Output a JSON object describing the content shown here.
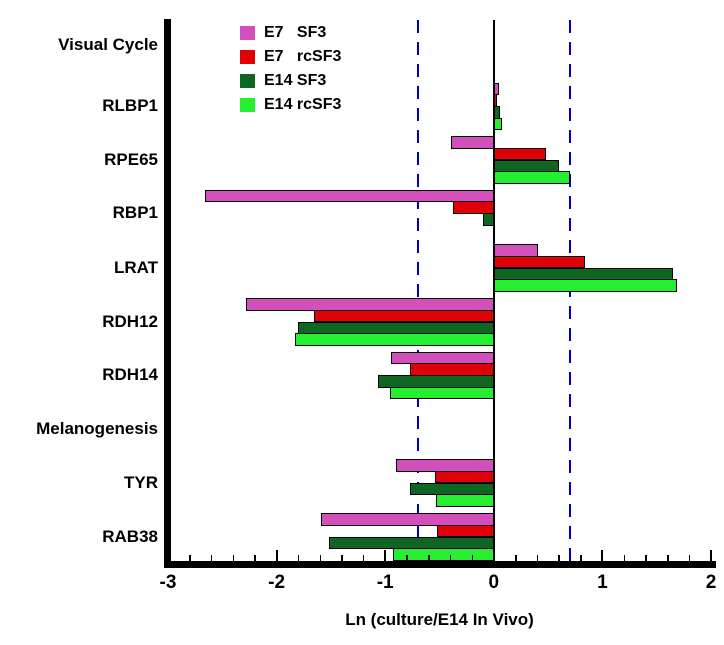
{
  "chart_data": {
    "type": "bar",
    "orientation": "horizontal",
    "xlabel": "Ln (culture/E14 In Vivo)",
    "xlim": [
      -3,
      2
    ],
    "x_tick_values": [
      -3,
      -2,
      -1,
      0,
      1,
      2
    ],
    "x_tick_labels": [
      "-3",
      "-2",
      "-1",
      "0",
      "1",
      "2"
    ],
    "minor_tick_step": 0.2,
    "grid": false,
    "zero_line_value": 0,
    "reference_lines": {
      "values": [
        -0.7,
        0.7
      ],
      "color": "#0000CC",
      "style": "dashed"
    },
    "legend_position": "top-inside",
    "series_names": [
      "E7 SF3",
      "E7 rcSF3",
      "E14 SF3",
      "E14 rcSF3"
    ],
    "legend": [
      {
        "label": "E7   SF3",
        "color": "#D34FBC"
      },
      {
        "label": "E7   rcSF3",
        "color": "#E00008"
      },
      {
        "label": "E14 SF3",
        "color": "#0F6622"
      },
      {
        "label": "E14 rcSF3",
        "color": "#26EF32"
      }
    ],
    "categories": [
      "Visual Cycle",
      "RLBP1",
      "RPE65",
      "RBP1",
      "LRAT",
      "RDH12",
      "RDH14",
      "Melanogenesis",
      "TYR",
      "RAB38"
    ],
    "groups": [
      {
        "label": "Visual Cycle",
        "is_section_header": true,
        "values": null
      },
      {
        "label": "RLBP1",
        "is_section_header": false,
        "values": [
          0.05,
          0.03,
          0.06,
          0.08
        ]
      },
      {
        "label": "RPE65",
        "is_section_header": false,
        "values": [
          -0.39,
          0.48,
          0.6,
          0.7
        ]
      },
      {
        "label": "RBP1",
        "is_section_header": false,
        "values": [
          -2.66,
          -0.38,
          -0.1,
          0
        ]
      },
      {
        "label": "LRAT",
        "is_section_header": false,
        "values": [
          0.41,
          0.84,
          1.65,
          1.69
        ]
      },
      {
        "label": "RDH12",
        "is_section_header": false,
        "values": [
          -2.28,
          -1.66,
          -1.8,
          -1.83
        ]
      },
      {
        "label": "RDH14",
        "is_section_header": false,
        "values": [
          -0.95,
          -0.77,
          -1.07,
          -0.96
        ]
      },
      {
        "label": "Melanogenesis",
        "is_section_header": true,
        "values": null
      },
      {
        "label": "TYR",
        "is_section_header": false,
        "values": [
          -0.9,
          -0.54,
          -0.77,
          -0.53
        ]
      },
      {
        "label": "RAB38",
        "is_section_header": false,
        "values": [
          -1.59,
          -0.52,
          -1.52,
          -0.93
        ]
      }
    ]
  }
}
